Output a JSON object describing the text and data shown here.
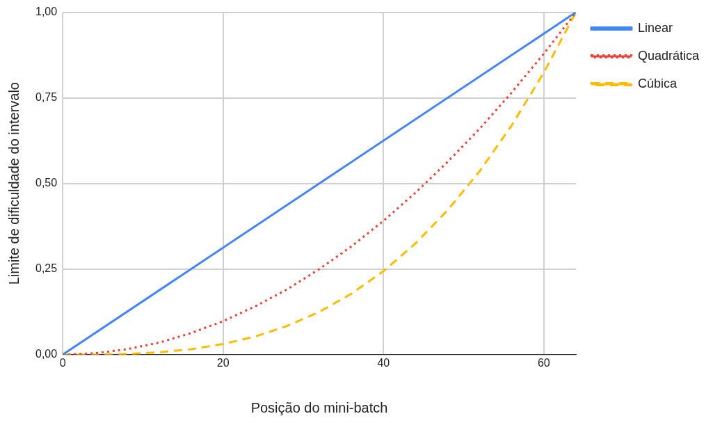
{
  "chart_data": {
    "type": "line",
    "xlabel": "Posição do mini-batch",
    "ylabel": "Limite de dificuldade do intervalo",
    "x": [
      0,
      4,
      8,
      12,
      16,
      20,
      24,
      28,
      32,
      36,
      40,
      44,
      48,
      52,
      56,
      60,
      64
    ],
    "series": [
      {
        "name": "Linear",
        "color": "#4285f4",
        "line_style": "solid",
        "x": [
          0,
          64
        ],
        "values": [
          0,
          1
        ]
      },
      {
        "name": "Quadrática",
        "color": "#ea4335",
        "line_style": "dotted",
        "values": [
          0,
          0.004,
          0.016,
          0.035,
          0.063,
          0.098,
          0.141,
          0.191,
          0.25,
          0.316,
          0.391,
          0.473,
          0.563,
          0.66,
          0.766,
          0.879,
          1
        ]
      },
      {
        "name": "Cúbica",
        "color": "#fbbc04",
        "line_style": "dashed",
        "values": [
          0,
          0,
          0.002,
          0.007,
          0.016,
          0.031,
          0.053,
          0.084,
          0.125,
          0.178,
          0.244,
          0.325,
          0.422,
          0.536,
          0.67,
          0.824,
          1
        ]
      }
    ],
    "xlim": [
      0,
      64
    ],
    "xticks": [
      0,
      20,
      40,
      60
    ],
    "ylim": [
      0,
      1
    ],
    "yticks": [
      {
        "value": 0,
        "label": "0,00"
      },
      {
        "value": 0.25,
        "label": "0,25"
      },
      {
        "value": 0.5,
        "label": "0,50"
      },
      {
        "value": 0.75,
        "label": "0,75"
      },
      {
        "value": 1,
        "label": "1,00"
      }
    ],
    "grid": true,
    "legend": "top right",
    "marker": "none"
  }
}
